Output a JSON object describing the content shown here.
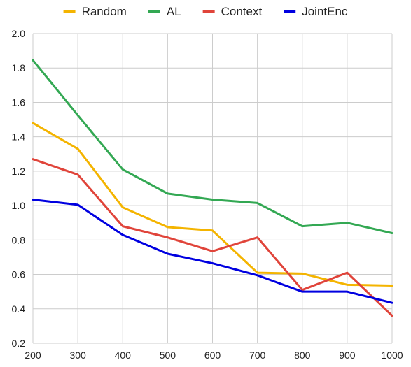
{
  "chart_data": {
    "type": "line",
    "title": "",
    "xlabel": "",
    "ylabel": "",
    "x": [
      200,
      300,
      400,
      500,
      600,
      700,
      800,
      900,
      1000
    ],
    "xlim": [
      200,
      1000
    ],
    "ylim": [
      0.2,
      2.0
    ],
    "x_ticks": [
      "200",
      "300",
      "400",
      "500",
      "600",
      "700",
      "800",
      "900",
      "1000"
    ],
    "y_ticks": [
      "0.2",
      "0.4",
      "0.6",
      "0.8",
      "1.0",
      "1.2",
      "1.4",
      "1.6",
      "1.8",
      "2.0"
    ],
    "grid": true,
    "legend_position": "top",
    "series": [
      {
        "name": "Random",
        "color": "#F4B400",
        "values": [
          1.48,
          1.33,
          0.99,
          0.875,
          0.855,
          0.61,
          0.605,
          0.54,
          0.535
        ]
      },
      {
        "name": "AL",
        "color": "#33A853",
        "values": [
          1.845,
          1.525,
          1.21,
          1.07,
          1.035,
          1.015,
          0.88,
          0.9,
          0.84
        ]
      },
      {
        "name": "Context",
        "color": "#E0443A",
        "values": [
          1.27,
          1.18,
          0.88,
          0.815,
          0.735,
          0.815,
          0.51,
          0.61,
          0.36
        ]
      },
      {
        "name": "JointEnc",
        "color": "#0000E0",
        "values": [
          1.035,
          1.005,
          0.83,
          0.72,
          0.665,
          0.595,
          0.5,
          0.5,
          0.435
        ]
      }
    ]
  }
}
